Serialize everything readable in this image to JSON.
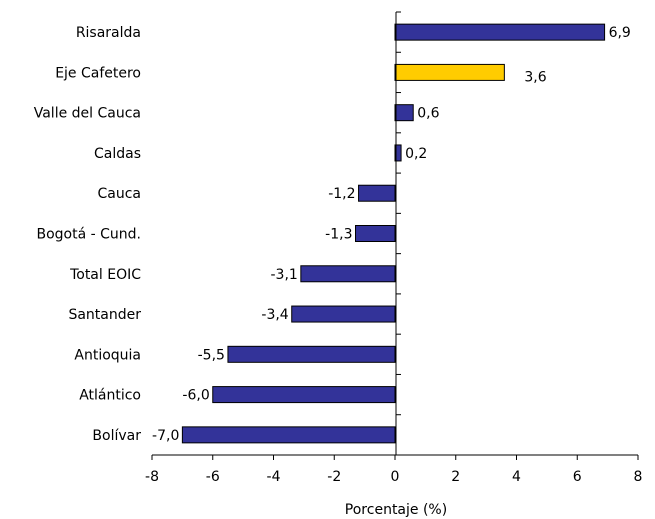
{
  "chart_data": {
    "type": "bar",
    "orientation": "horizontal",
    "title": "",
    "xlabel": "Porcentaje (%)",
    "ylabel": "",
    "xlim": [
      -8,
      8
    ],
    "xticks": [
      -8,
      -6,
      -4,
      -2,
      0,
      2,
      4,
      6,
      8
    ],
    "grid": false,
    "legend": "none",
    "categories": [
      "Risaralda",
      "Eje Cafetero",
      "Valle del Cauca",
      "Caldas",
      "Cauca",
      "Bogotá - Cund.",
      "Total EOIC",
      "Santander",
      "Antioquia",
      "Atlántico",
      "Bolívar"
    ],
    "values": [
      6.9,
      3.6,
      0.6,
      0.2,
      -1.2,
      -1.3,
      -3.1,
      -3.4,
      -5.5,
      -6.0,
      -7.0
    ],
    "value_labels": [
      "6,9",
      "3,6",
      "0,6",
      "0,2",
      "-1,2",
      "-1,3",
      "-3,1",
      "-3,4",
      "-5,5",
      "-6,0",
      "-7,0"
    ],
    "colors": {
      "default_bar": "#333399",
      "highlight_bar": "#FFCC00",
      "highlight_category": "Eje Cafetero",
      "bar_stroke": "#000000",
      "axis": "#000000"
    }
  }
}
